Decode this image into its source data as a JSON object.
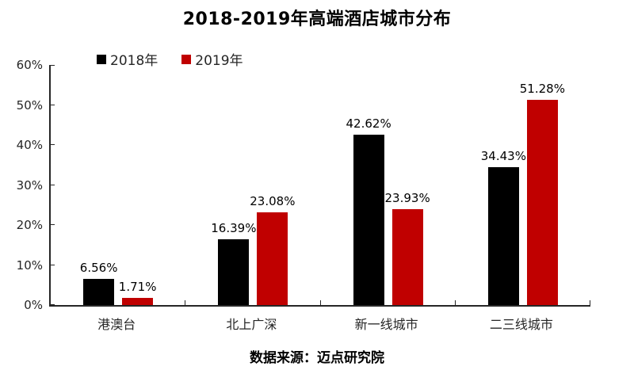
{
  "chart_data": {
    "type": "bar",
    "title": "2018-2019年高端酒店城市分布",
    "categories": [
      "港澳台",
      "北上广深",
      "新一线城市",
      "二三线城市"
    ],
    "series": [
      {
        "name": "2018年",
        "color": "#000000",
        "values": [
          6.56,
          16.39,
          42.62,
          34.43
        ],
        "labels": [
          "6.56%",
          "16.39%",
          "42.62%",
          "34.43%"
        ]
      },
      {
        "name": "2019年",
        "color": "#C00000",
        "values": [
          1.71,
          23.08,
          23.93,
          51.28
        ],
        "labels": [
          "1.71%",
          "23.08%",
          "23.93%",
          "51.28%"
        ]
      }
    ],
    "ylim": [
      0,
      60
    ],
    "ytick_step": 10,
    "ytick_labels": [
      "0%",
      "10%",
      "20%",
      "30%",
      "40%",
      "50%",
      "60%"
    ],
    "grid": false,
    "legend_position": "top-left",
    "axis_color": "#262626"
  },
  "source": "数据来源：迈点研究院"
}
